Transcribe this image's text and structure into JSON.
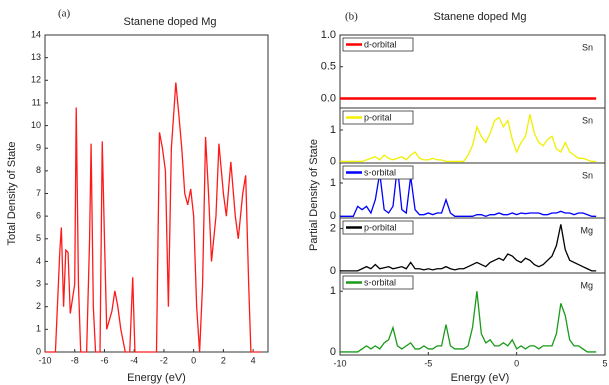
{
  "chart_data": [
    {
      "type": "line",
      "label": "(a)",
      "title": "Stanene doped Mg",
      "xlabel": "Energy (eV)",
      "ylabel": "Total Density of State",
      "xlim": [
        -10,
        5
      ],
      "xticks": [
        -10,
        -8,
        -6,
        -4,
        -2,
        0,
        2,
        4
      ],
      "ylim": [
        0,
        14
      ],
      "yticks": [
        0,
        1,
        2,
        3,
        4,
        5,
        6,
        7,
        8,
        9,
        10,
        11,
        12,
        13,
        14
      ],
      "grid": false,
      "x": [
        -10,
        -9.3,
        -9.0,
        -8.9,
        -8.75,
        -8.6,
        -8.45,
        -8.3,
        -8.0,
        -7.9,
        -7.75,
        -7.6,
        -7.2,
        -7.0,
        -6.9,
        -6.75,
        -6.6,
        -6.3,
        -6.15,
        -6.0,
        -5.85,
        -5.5,
        -5.3,
        -5.1,
        -4.9,
        -4.6,
        -4.3,
        -4.1,
        -3.95,
        -2.5,
        -2.3,
        -2.1,
        -1.9,
        -1.7,
        -1.5,
        -1.2,
        -1.0,
        -0.8,
        -0.6,
        -0.4,
        -0.2,
        0,
        0.2,
        0.4,
        0.6,
        0.8,
        1.0,
        1.2,
        1.5,
        1.7,
        2.0,
        2.2,
        2.5,
        2.8,
        3.0,
        3.3,
        3.5,
        3.7,
        3.85,
        4.5
      ],
      "series": [
        {
          "color": "#ff1a1a",
          "values": [
            0,
            0,
            4.5,
            5.5,
            2,
            4.5,
            4.4,
            1.7,
            3,
            10.8,
            3,
            0,
            0,
            5,
            9.2,
            2,
            0,
            0,
            9.3,
            5,
            1,
            1.8,
            2.7,
            2,
            1,
            0,
            0,
            3.3,
            0,
            0,
            9.7,
            9,
            8,
            2,
            9,
            11.9,
            10.5,
            9,
            7,
            6.5,
            7.2,
            6,
            2,
            0,
            3,
            9.5,
            7,
            4,
            6,
            9.2,
            7,
            6,
            8.4,
            6,
            5,
            7,
            7.8,
            3,
            0,
            0
          ]
        }
      ]
    },
    {
      "type": "multi-panel-line",
      "label": "(b)",
      "title": "Stanene doped Mg",
      "xlabel": "Energy (eV)",
      "ylabel": "Partial Density of State",
      "xlim": [
        -10,
        5
      ],
      "xticks": [
        -10,
        -5,
        0,
        5
      ],
      "x": [
        -10,
        -9.75,
        -9.5,
        -9.25,
        -9,
        -8.75,
        -8.5,
        -8.25,
        -8,
        -7.75,
        -7.5,
        -7.25,
        -7,
        -6.75,
        -6.5,
        -6.25,
        -6,
        -5.75,
        -5.5,
        -5.25,
        -5,
        -4.75,
        -4.5,
        -4.25,
        -4,
        -3.75,
        -3.5,
        -3.25,
        -3,
        -2.75,
        -2.5,
        -2.25,
        -2,
        -1.75,
        -1.5,
        -1.25,
        -1,
        -0.75,
        -0.5,
        -0.25,
        0,
        0.25,
        0.5,
        0.75,
        1,
        1.25,
        1.5,
        1.75,
        2,
        2.25,
        2.5,
        2.75,
        3,
        3.25,
        3.5,
        3.75,
        4,
        4.25,
        4.5
      ],
      "series": [
        {
          "name": "d-orbital",
          "color": "#ff0000",
          "annotation": "Sn",
          "ylim": [
            -0.15,
            1.0
          ],
          "yticks": [
            {
              "value": 0,
              "label": "0.0"
            },
            {
              "value": 0.5,
              "label": "0.5"
            },
            {
              "value": 1,
              "label": "1.0"
            }
          ],
          "values": [
            0,
            0,
            0,
            0,
            0,
            0,
            0,
            0,
            0,
            0,
            0,
            0,
            0,
            0,
            0,
            0,
            0,
            0,
            0,
            0,
            0,
            0,
            0,
            0,
            0,
            0,
            0,
            0,
            0,
            0,
            0,
            0,
            0,
            0,
            0,
            0,
            0,
            0,
            0,
            0,
            0,
            0,
            0,
            0,
            0,
            0,
            0,
            0,
            0,
            0,
            0,
            0,
            0,
            0,
            0,
            0,
            0,
            0,
            0
          ]
        },
        {
          "name": "p-orital",
          "color": "#f0f000",
          "annotation": "Sn",
          "ylim": [
            -0.05,
            1.7
          ],
          "yticks": [
            0,
            1
          ],
          "values": [
            0,
            0,
            0,
            0,
            0,
            0,
            0.05,
            0.1,
            0.15,
            0.05,
            0.2,
            0.1,
            0.05,
            0.1,
            0.15,
            0.05,
            0.2,
            0.3,
            0.1,
            0.05,
            0.05,
            0.1,
            0.05,
            0.05,
            0,
            0,
            0,
            0,
            0,
            0.2,
            0.5,
            1.1,
            0.8,
            0.6,
            0.9,
            1.3,
            1.4,
            1.1,
            1.3,
            0.7,
            0.3,
            0.6,
            0.8,
            1.5,
            0.9,
            0.6,
            0.5,
            0.7,
            0.8,
            0.4,
            0.3,
            0.6,
            0.3,
            0.2,
            0.1,
            0.1,
            0.05,
            0,
            0
          ]
        },
        {
          "name": "s-orbital",
          "color": "#0000ff",
          "annotation": "Sn",
          "ylim": [
            -0.05,
            1.6
          ],
          "yticks": [
            0,
            1
          ],
          "values": [
            0,
            0,
            0,
            0,
            0.3,
            0.2,
            0.3,
            0.1,
            0.5,
            1.3,
            0.2,
            0.1,
            0.3,
            1.5,
            0.2,
            0.1,
            1.2,
            0.2,
            0.05,
            0.05,
            0.1,
            0.05,
            0.1,
            0.1,
            0.5,
            0.1,
            0,
            0,
            0,
            0,
            0,
            0.05,
            0.05,
            0,
            0.05,
            0.05,
            0.1,
            0.05,
            0.05,
            0.1,
            0.05,
            0.1,
            0.08,
            0.1,
            0.1,
            0.1,
            0.05,
            0.05,
            0.1,
            0.1,
            0.15,
            0.1,
            0.1,
            0.05,
            0.1,
            0.1,
            0.05,
            0,
            0
          ]
        },
        {
          "name": "p-orbital",
          "color": "#000000",
          "annotation": "Mg",
          "ylim": [
            -0.1,
            2.5
          ],
          "yticks": [
            0,
            2
          ],
          "values": [
            0,
            0,
            0,
            0,
            0,
            0.1,
            0.2,
            0.1,
            0.3,
            0.1,
            0.15,
            0.2,
            0.1,
            0.15,
            0.2,
            0.1,
            0.4,
            0.1,
            0.1,
            0.05,
            0.1,
            0.05,
            0.1,
            0.1,
            0.2,
            0.1,
            0.05,
            0.1,
            0.1,
            0.2,
            0.3,
            0.4,
            0.3,
            0.2,
            0.4,
            0.5,
            0.6,
            0.5,
            0.8,
            0.7,
            0.5,
            0.4,
            0.6,
            0.5,
            0.3,
            0.2,
            0.3,
            0.5,
            0.7,
            1.2,
            2.2,
            1.0,
            0.5,
            0.4,
            0.3,
            0.2,
            0.1,
            0,
            0
          ]
        },
        {
          "name": "s-orbital",
          "color": "#1a9a1a",
          "annotation": "Mg",
          "ylim": [
            -0.05,
            1.3
          ],
          "yticks": [
            0,
            1
          ],
          "values": [
            0,
            0,
            0,
            0,
            0,
            0.05,
            0.1,
            0.05,
            0.1,
            0.05,
            0.15,
            0.2,
            0.4,
            0.1,
            0.05,
            0.1,
            0.15,
            0.05,
            0.05,
            0.1,
            0.05,
            0.05,
            0.1,
            0.1,
            0.45,
            0.1,
            0.05,
            0.05,
            0.05,
            0.1,
            0.4,
            1.0,
            0.3,
            0.15,
            0.2,
            0.1,
            0.1,
            0.15,
            0.1,
            0.2,
            0.05,
            0.1,
            0.05,
            0.1,
            0.1,
            0.05,
            0.1,
            0.1,
            0.1,
            0.3,
            0.8,
            0.6,
            0.2,
            0.1,
            0.1,
            0.05,
            0,
            0,
            0
          ]
        }
      ]
    }
  ]
}
